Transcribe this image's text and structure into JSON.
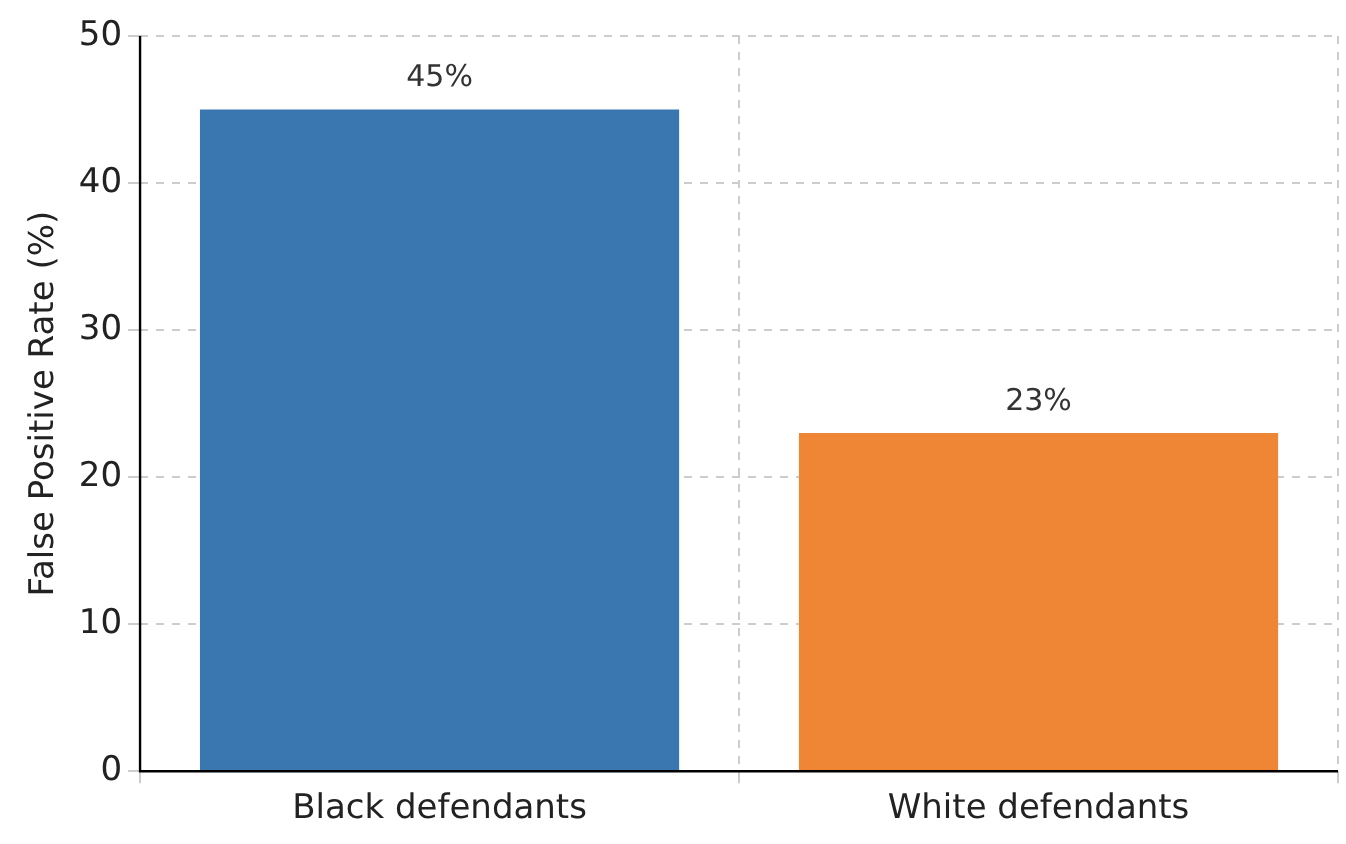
{
  "chart_data": {
    "type": "bar",
    "ylabel": "False Positive Rate (%)",
    "categories": [
      "Black defendants",
      "White defendants"
    ],
    "values": [
      45,
      23
    ],
    "colors": [
      "#3a76af",
      "#ef8636"
    ],
    "value_labels": [
      "45%",
      "23%"
    ],
    "ylim": [
      0,
      50
    ],
    "yticks": [
      0,
      10,
      20,
      30,
      40,
      50
    ],
    "grid": true
  }
}
